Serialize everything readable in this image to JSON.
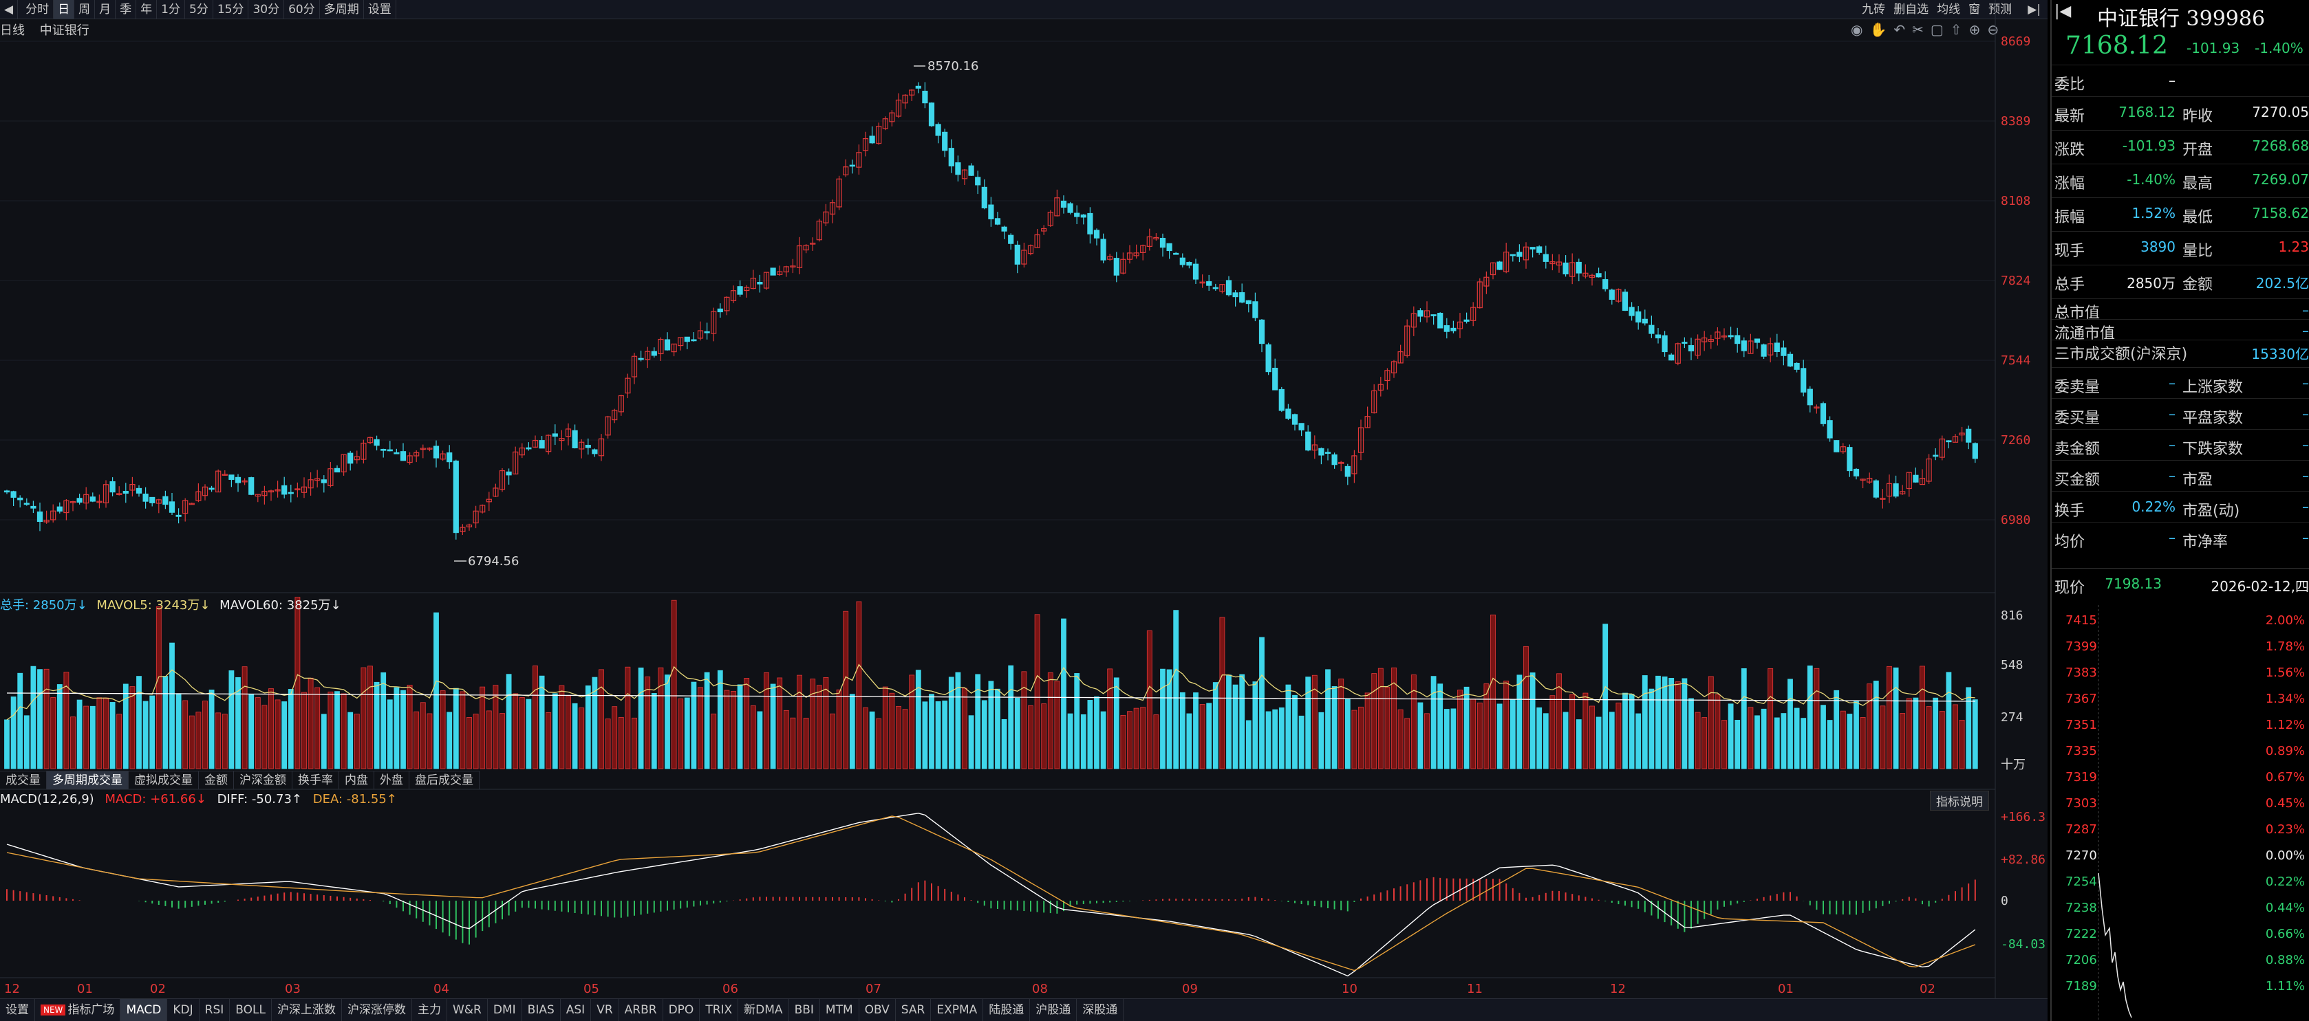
{
  "toolbar": {
    "tabs": [
      "分时",
      "日",
      "周",
      "月",
      "季",
      "年",
      "1分",
      "5分",
      "15分",
      "30分",
      "60分",
      "多周期",
      "设置"
    ],
    "active": "日",
    "right_items": [
      "九砖",
      "删自选",
      "均线",
      "窗",
      "预测"
    ]
  },
  "chart_header": {
    "period": "日线",
    "name": "中证银行"
  },
  "price_axis": [
    "8669",
    "8389",
    "8108",
    "7824",
    "7544",
    "7260",
    "6980"
  ],
  "annotations": {
    "high": "8570.16",
    "low": "6794.56"
  },
  "volume_legend": {
    "total": "总手: 2850万↓",
    "mavol5": "MAVOL5: 3243万↓",
    "mavol60": "MAVOL60: 3825万↓"
  },
  "volume_axis": [
    "816",
    "548",
    "274",
    "十万"
  ],
  "volume_tabs": [
    "成交量",
    "多周期成交量",
    "虚拟成交量",
    "金额",
    "沪深金额",
    "换手率",
    "内盘",
    "外盘",
    "盘后成交量"
  ],
  "volume_tab_active": "多周期成交量",
  "macd_legend": {
    "label": "MACD(12,26,9)",
    "macd": "MACD: +61.66↓",
    "diff": "DIFF: -50.73↑",
    "dea": "DEA: -81.55↑"
  },
  "macd_axis": [
    "+166.3",
    "+82.86",
    "0",
    "-84.03"
  ],
  "indicator_button": "指标说明",
  "months": [
    "12",
    "01",
    "02",
    "03",
    "04",
    "05",
    "06",
    "07",
    "08",
    "09",
    "10",
    "11",
    "12",
    "01",
    "02"
  ],
  "bottom_tabs": [
    "设置",
    "指标广场",
    "MACD",
    "KDJ",
    "RSI",
    "BOLL",
    "沪深上涨数",
    "沪深涨停数",
    "主力",
    "W&R",
    "DMI",
    "BIAS",
    "ASI",
    "VR",
    "ARBR",
    "DPO",
    "TRIX",
    "新DMA",
    "BBI",
    "MTM",
    "OBV",
    "SAR",
    "EXPMA",
    "陆股通",
    "沪股通",
    "深股通"
  ],
  "bottom_active": "MACD",
  "new_badge": "NEW",
  "quote": {
    "title": "中证银行 399986",
    "price": "7168.12",
    "change": "-101.93",
    "change_pct": "-1.40%",
    "weibi_label": "委比",
    "weibi_value": "–",
    "rows": [
      {
        "l": "最新",
        "v": "7168.12",
        "vc": "g",
        "l2": "昨收",
        "v2": "7270.05",
        "v2c": "w"
      },
      {
        "l": "涨跌",
        "v": "-101.93",
        "vc": "g",
        "l2": "开盘",
        "v2": "7268.68",
        "v2c": "g"
      },
      {
        "l": "涨幅",
        "v": "-1.40%",
        "vc": "g",
        "l2": "最高",
        "v2": "7269.07",
        "v2c": "g"
      },
      {
        "l": "振幅",
        "v": "1.52%",
        "vc": "c",
        "l2": "最低",
        "v2": "7158.62",
        "v2c": "g"
      },
      {
        "l": "现手",
        "v": "3890",
        "vc": "c",
        "l2": "量比",
        "v2": "1.23",
        "v2c": "r"
      },
      {
        "l": "总手",
        "v": "2850万",
        "vc": "w",
        "l2": "金额",
        "v2": "202.5亿",
        "v2c": "c"
      }
    ],
    "rows_b": [
      {
        "l": "总市值",
        "v": "–"
      },
      {
        "l": "流通市值",
        "v": "–"
      },
      {
        "l": "三市成交额(沪深京)",
        "v": "15330亿"
      }
    ],
    "rows_c": [
      {
        "l": "委卖量",
        "v": "–",
        "l2": "上涨家数",
        "v2": "–"
      },
      {
        "l": "委买量",
        "v": "–",
        "l2": "平盘家数",
        "v2": "–"
      },
      {
        "l": "卖金额",
        "v": "–",
        "l2": "下跌家数",
        "v2": "–"
      },
      {
        "l": "买金额",
        "v": "–",
        "l2": "市盈",
        "v2": "–"
      },
      {
        "l": "换手",
        "v": "0.22%",
        "l2": "市盈(动)",
        "v2": "–"
      },
      {
        "l": "均价",
        "v": "–",
        "l2": "市净率",
        "v2": "–"
      }
    ],
    "cur_label": "现价",
    "cur_value": "7198.13",
    "cur_date": "2026-02-12,四"
  },
  "tick_levels": [
    {
      "p": "7415",
      "pct": "2.00%"
    },
    {
      "p": "7399",
      "pct": "1.78%"
    },
    {
      "p": "7383",
      "pct": "1.56%"
    },
    {
      "p": "7367",
      "pct": "1.34%"
    },
    {
      "p": "7351",
      "pct": "1.12%"
    },
    {
      "p": "7335",
      "pct": "0.89%"
    },
    {
      "p": "7319",
      "pct": "0.67%"
    },
    {
      "p": "7303",
      "pct": "0.45%"
    },
    {
      "p": "7287",
      "pct": "0.23%"
    },
    {
      "p": "7270",
      "pct": "0.00%"
    },
    {
      "p": "7254",
      "pct": "0.22%"
    },
    {
      "p": "7238",
      "pct": "0.44%"
    },
    {
      "p": "7222",
      "pct": "0.66%"
    },
    {
      "p": "7206",
      "pct": "0.88%"
    },
    {
      "p": "7189",
      "pct": "1.11%"
    }
  ],
  "colors": {
    "up": "#e03838",
    "down": "#3fd6ea",
    "dea": "#e8a23a",
    "diff": "#ffffff",
    "mavol5": "#e8d87a",
    "mavol60": "#ffffff"
  }
}
